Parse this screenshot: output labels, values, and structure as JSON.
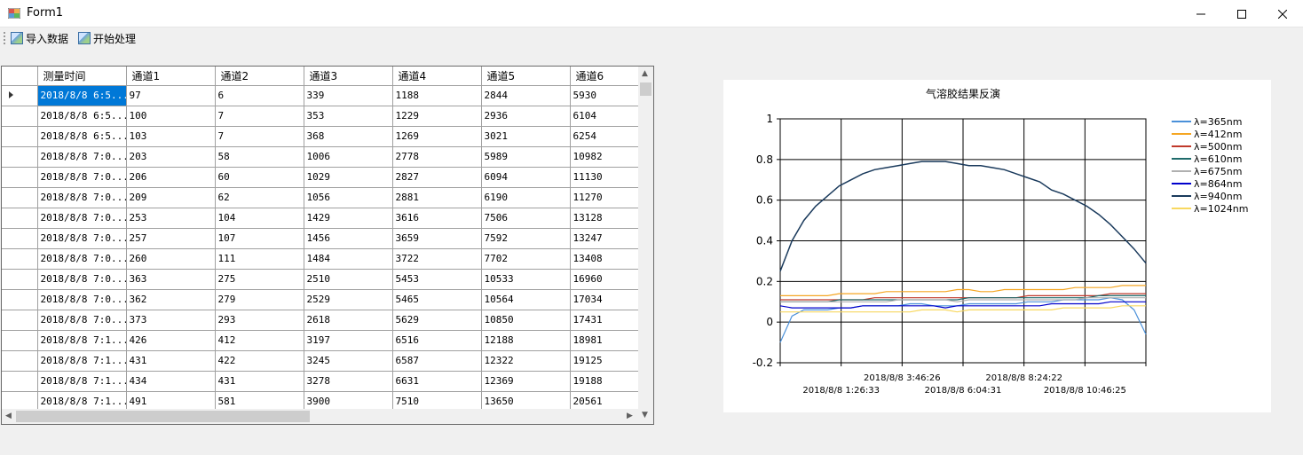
{
  "window": {
    "title": "Form1"
  },
  "toolbar": {
    "import_label": "导入数据",
    "process_label": "开始处理"
  },
  "grid": {
    "columns": [
      "测量时间",
      "通道1",
      "通道2",
      "通道3",
      "通道4",
      "通道5",
      "通道6"
    ],
    "rows": [
      [
        "2018/8/8 6:5...",
        "97",
        "6",
        "339",
        "1188",
        "2844",
        "5930"
      ],
      [
        "2018/8/8 6:5...",
        "100",
        "7",
        "353",
        "1229",
        "2936",
        "6104"
      ],
      [
        "2018/8/8 6:5...",
        "103",
        "7",
        "368",
        "1269",
        "3021",
        "6254"
      ],
      [
        "2018/8/8 7:0...",
        "203",
        "58",
        "1006",
        "2778",
        "5989",
        "10982"
      ],
      [
        "2018/8/8 7:0...",
        "206",
        "60",
        "1029",
        "2827",
        "6094",
        "11130"
      ],
      [
        "2018/8/8 7:0...",
        "209",
        "62",
        "1056",
        "2881",
        "6190",
        "11270"
      ],
      [
        "2018/8/8 7:0...",
        "253",
        "104",
        "1429",
        "3616",
        "7506",
        "13128"
      ],
      [
        "2018/8/8 7:0...",
        "257",
        "107",
        "1456",
        "3659",
        "7592",
        "13247"
      ],
      [
        "2018/8/8 7:0...",
        "260",
        "111",
        "1484",
        "3722",
        "7702",
        "13408"
      ],
      [
        "2018/8/8 7:0...",
        "363",
        "275",
        "2510",
        "5453",
        "10533",
        "16960"
      ],
      [
        "2018/8/8 7:0...",
        "362",
        "279",
        "2529",
        "5465",
        "10564",
        "17034"
      ],
      [
        "2018/8/8 7:0...",
        "373",
        "293",
        "2618",
        "5629",
        "10850",
        "17431"
      ],
      [
        "2018/8/8 7:1...",
        "426",
        "412",
        "3197",
        "6516",
        "12188",
        "18981"
      ],
      [
        "2018/8/8 7:1...",
        "431",
        "422",
        "3245",
        "6587",
        "12322",
        "19125"
      ],
      [
        "2018/8/8 7:1...",
        "434",
        "431",
        "3278",
        "6631",
        "12369",
        "19188"
      ],
      [
        "2018/8/8 7:1...",
        "491",
        "581",
        "3900",
        "7510",
        "13650",
        "20561"
      ]
    ]
  },
  "chart_data": {
    "type": "line",
    "title": "气溶胶结果反演",
    "ylim": [
      -0.2,
      1
    ],
    "yticks": [
      "1",
      "0.8",
      "0.6",
      "0.4",
      "0.2",
      "0",
      "-0.2"
    ],
    "x_tick_labels_upper": [
      "2018/8/8 3:46:26",
      "2018/8/8 8:24:22"
    ],
    "x_tick_labels_lower": [
      "2018/8/8 1:26:33",
      "2018/8/8 6:04:31",
      "2018/8/8 10:46:25"
    ],
    "grid": true,
    "legend_position": "right",
    "series": [
      {
        "name": "λ=365nm",
        "color": "#4a90d9",
        "values": [
          -0.1,
          0.03,
          0.06,
          0.06,
          0.06,
          0.07,
          0.07,
          0.08,
          0.08,
          0.08,
          0.08,
          0.09,
          0.09,
          0.08,
          0.08,
          0.08,
          0.09,
          0.09,
          0.09,
          0.09,
          0.09,
          0.1,
          0.1,
          0.1,
          0.11,
          0.11,
          0.11,
          0.11,
          0.12,
          0.11,
          0.06,
          -0.06
        ]
      },
      {
        "name": "λ=412nm",
        "color": "#f5a623",
        "values": [
          0.13,
          0.13,
          0.13,
          0.13,
          0.13,
          0.14,
          0.14,
          0.14,
          0.14,
          0.15,
          0.15,
          0.15,
          0.15,
          0.15,
          0.15,
          0.16,
          0.16,
          0.15,
          0.15,
          0.16,
          0.16,
          0.16,
          0.16,
          0.16,
          0.16,
          0.17,
          0.17,
          0.17,
          0.17,
          0.18,
          0.18,
          0.18
        ]
      },
      {
        "name": "λ=500nm",
        "color": "#c0392b",
        "values": [
          0.11,
          0.11,
          0.11,
          0.11,
          0.11,
          0.11,
          0.11,
          0.11,
          0.12,
          0.12,
          0.12,
          0.12,
          0.12,
          0.12,
          0.12,
          0.12,
          0.12,
          0.12,
          0.12,
          0.12,
          0.12,
          0.13,
          0.13,
          0.13,
          0.13,
          0.13,
          0.13,
          0.13,
          0.14,
          0.14,
          0.14,
          0.14
        ]
      },
      {
        "name": "λ=610nm",
        "color": "#1f6b6b",
        "values": [
          0.1,
          0.1,
          0.1,
          0.1,
          0.1,
          0.11,
          0.11,
          0.11,
          0.11,
          0.11,
          0.11,
          0.11,
          0.11,
          0.11,
          0.11,
          0.11,
          0.12,
          0.12,
          0.12,
          0.12,
          0.12,
          0.12,
          0.12,
          0.12,
          0.12,
          0.12,
          0.12,
          0.13,
          0.13,
          0.13,
          0.13,
          0.13
        ]
      },
      {
        "name": "λ=675nm",
        "color": "#b0b0b0",
        "values": [
          0.1,
          0.1,
          0.1,
          0.1,
          0.1,
          0.1,
          0.1,
          0.1,
          0.1,
          0.1,
          0.11,
          0.11,
          0.11,
          0.11,
          0.11,
          0.1,
          0.11,
          0.11,
          0.11,
          0.11,
          0.11,
          0.11,
          0.11,
          0.11,
          0.11,
          0.11,
          0.12,
          0.12,
          0.12,
          0.12,
          0.12,
          0.12
        ]
      },
      {
        "name": "λ=864nm",
        "color": "#0000cc",
        "values": [
          0.08,
          0.07,
          0.07,
          0.07,
          0.07,
          0.07,
          0.07,
          0.08,
          0.08,
          0.08,
          0.08,
          0.08,
          0.08,
          0.08,
          0.07,
          0.08,
          0.08,
          0.08,
          0.08,
          0.08,
          0.08,
          0.08,
          0.08,
          0.09,
          0.09,
          0.09,
          0.09,
          0.09,
          0.1,
          0.1,
          0.1,
          0.1
        ]
      },
      {
        "name": "λ=940nm",
        "color": "#1a3a5c",
        "values": [
          0.25,
          0.4,
          0.5,
          0.57,
          0.62,
          0.67,
          0.7,
          0.73,
          0.75,
          0.76,
          0.77,
          0.78,
          0.79,
          0.79,
          0.79,
          0.78,
          0.77,
          0.77,
          0.76,
          0.75,
          0.73,
          0.71,
          0.69,
          0.65,
          0.63,
          0.6,
          0.57,
          0.53,
          0.48,
          0.42,
          0.36,
          0.29
        ]
      },
      {
        "name": "λ=1024nm",
        "color": "#f8d860",
        "values": [
          0.05,
          0.05,
          0.05,
          0.05,
          0.05,
          0.05,
          0.05,
          0.05,
          0.05,
          0.05,
          0.05,
          0.05,
          0.06,
          0.06,
          0.06,
          0.05,
          0.06,
          0.06,
          0.06,
          0.06,
          0.06,
          0.06,
          0.06,
          0.06,
          0.07,
          0.07,
          0.07,
          0.07,
          0.07,
          0.08,
          0.08,
          0.08
        ]
      }
    ]
  }
}
